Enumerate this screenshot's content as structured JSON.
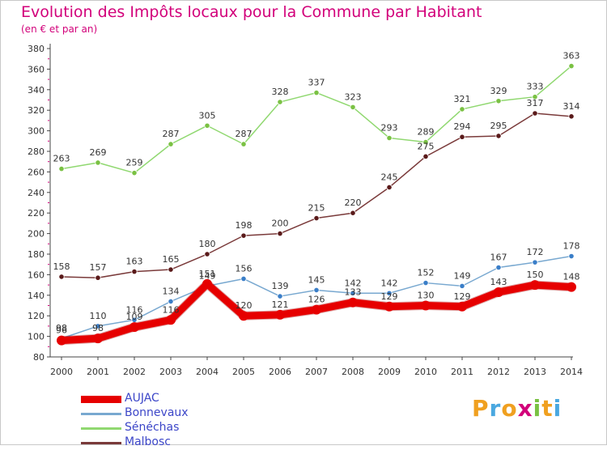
{
  "title": "Evolution des Impôts locaux pour la Commune par Habitant",
  "subtitle": "(en € et par an)",
  "logo_text": "Proxiti",
  "logo_letters": [
    {
      "ch": "P",
      "color": "#f0a020"
    },
    {
      "ch": "r",
      "color": "#4aa8e0"
    },
    {
      "ch": "o",
      "color": "#f0a020"
    },
    {
      "ch": "x",
      "color": "#d2007a"
    },
    {
      "ch": "i",
      "color": "#7ac143"
    },
    {
      "ch": "t",
      "color": "#f0a020"
    },
    {
      "ch": "i",
      "color": "#4aa8e0"
    }
  ],
  "chart_data": {
    "type": "line",
    "title": "Evolution des Impôts locaux pour la Commune par Habitant",
    "subtitle": "(en € et par an)",
    "xlabel": "",
    "ylabel": "",
    "ylim": [
      80,
      380
    ],
    "yticks": [
      80,
      100,
      120,
      140,
      160,
      180,
      200,
      220,
      240,
      260,
      280,
      300,
      320,
      340,
      360,
      380
    ],
    "x": [
      "2000",
      "2001",
      "2002",
      "2003",
      "2004",
      "2005",
      "2006",
      "2007",
      "2008",
      "2009",
      "2010",
      "2011",
      "2012",
      "2013",
      "2014"
    ],
    "grid": false,
    "legend_position": "bottom-left",
    "series": [
      {
        "name": "AUJAC",
        "color": "#e60000",
        "marker": "#e60000",
        "width": 9,
        "values": [
          96,
          98,
          109,
          116,
          151,
          120,
          121,
          126,
          133,
          129,
          130,
          129,
          143,
          150,
          148
        ]
      },
      {
        "name": "Bonnevaux",
        "color": "#78a8d0",
        "marker": "#3a7ec8",
        "width": 1.5,
        "values": [
          98,
          110,
          116,
          134,
          149,
          156,
          139,
          145,
          142,
          142,
          152,
          149,
          167,
          172,
          178
        ]
      },
      {
        "name": "Sénéchas",
        "color": "#90d870",
        "marker": "#7ac143",
        "width": 1.5,
        "values": [
          263,
          269,
          259,
          287,
          305,
          287,
          328,
          337,
          323,
          293,
          289,
          321,
          329,
          333,
          363
        ]
      },
      {
        "name": "Malbosc",
        "color": "#7a3a3a",
        "marker": "#5a1a1a",
        "width": 1.5,
        "values": [
          158,
          157,
          163,
          165,
          180,
          198,
          200,
          215,
          220,
          245,
          275,
          294,
          295,
          317,
          314
        ]
      }
    ]
  }
}
